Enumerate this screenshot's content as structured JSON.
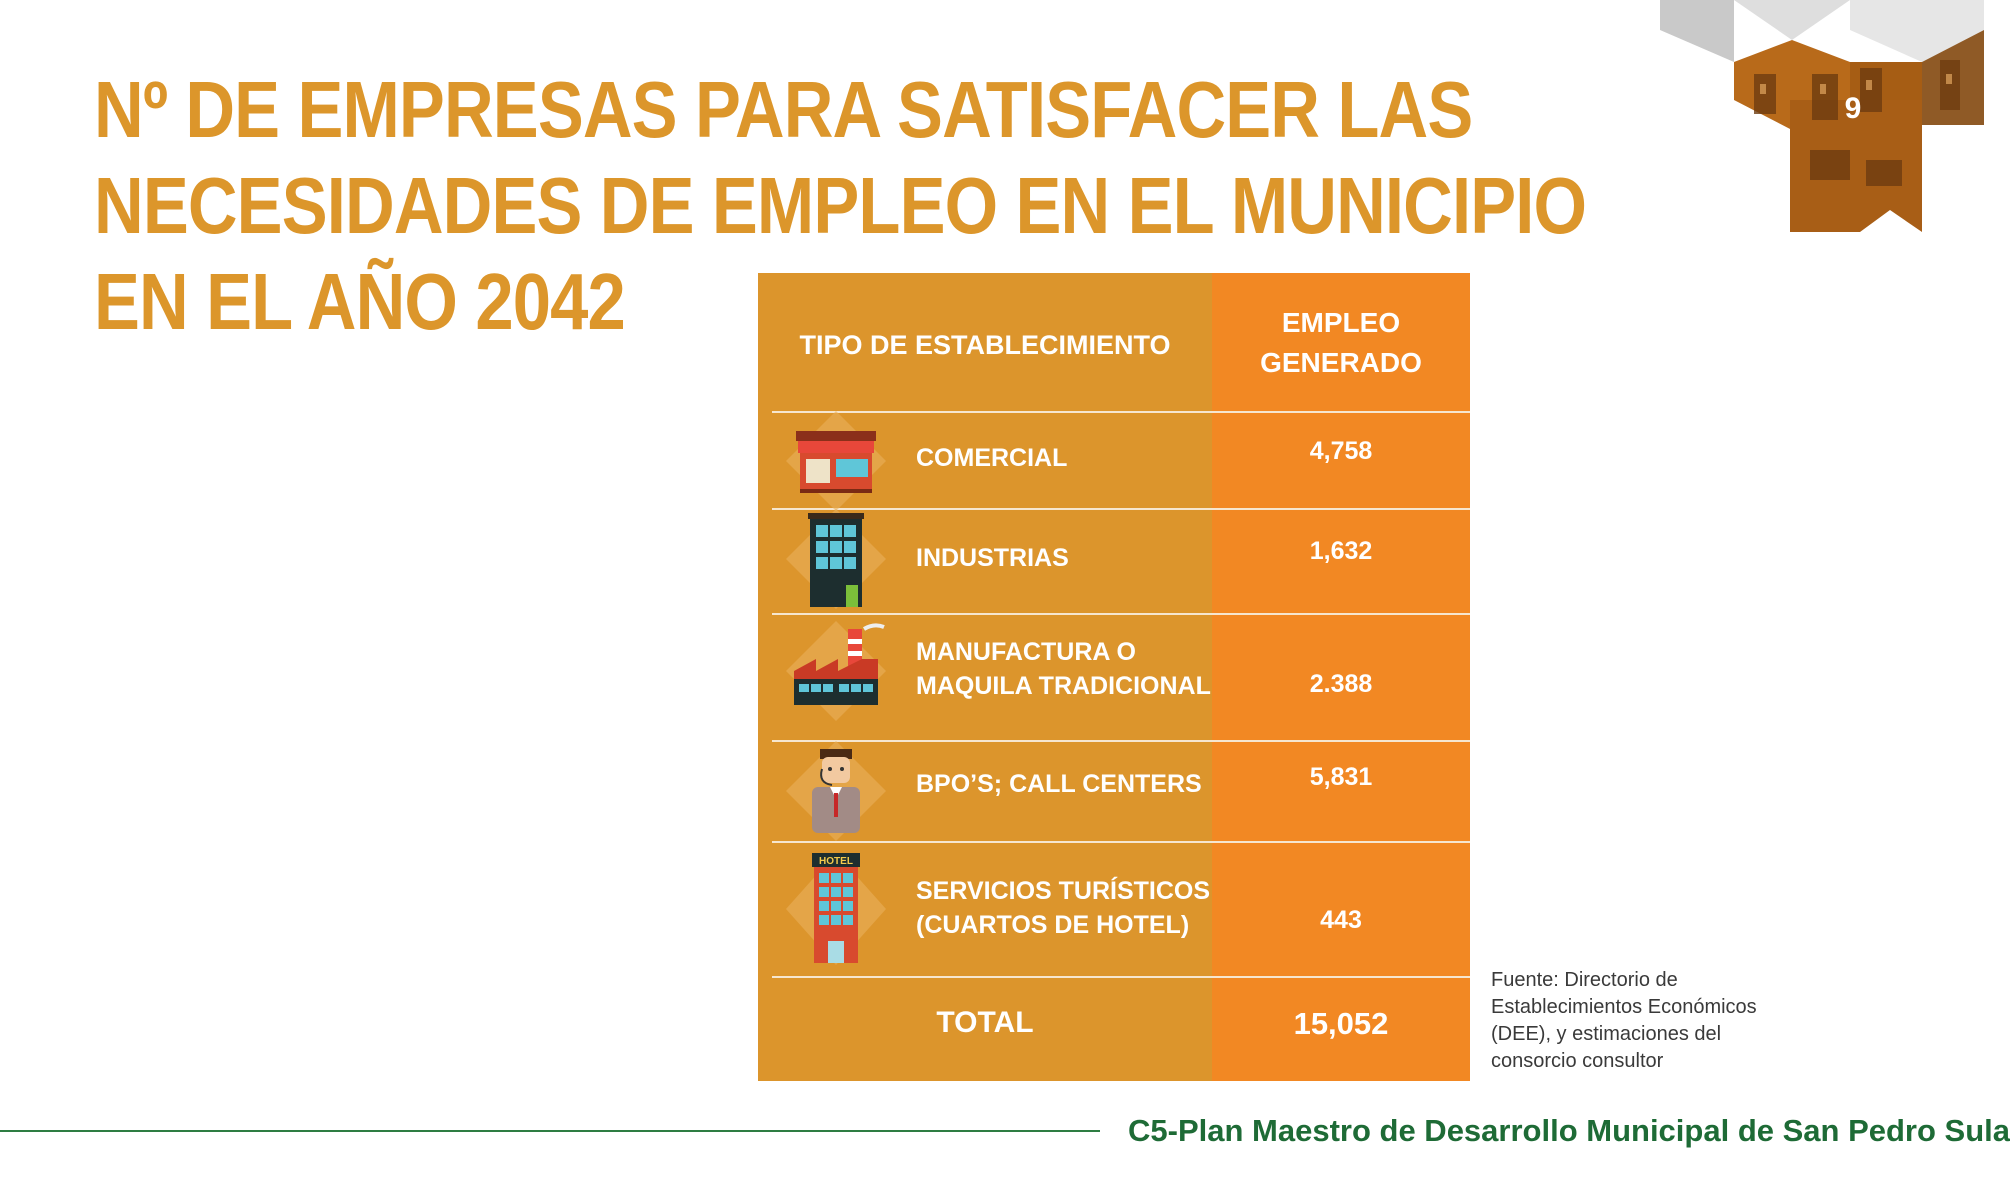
{
  "title": {
    "line1": "Nº DE EMPRESAS PARA SATISFACER LAS",
    "line2": "NECESIDADES DE EMPLEO EN EL MUNICIPIO",
    "line3": "EN EL AÑO 2042"
  },
  "page_number": "9",
  "table": {
    "header_left": "TIPO DE ESTABLECIMIENTO",
    "header_right": "EMPLEO\nGENERADO",
    "rows": [
      {
        "label": "COMERCIAL",
        "value": "4,758",
        "icon": "shop-icon"
      },
      {
        "label": "INDUSTRIAS",
        "value": "1,632",
        "icon": "office-building-icon"
      },
      {
        "label": "MANUFACTURA O\nMAQUILA TRADICIONAL",
        "value": "2.388",
        "icon": "factory-icon"
      },
      {
        "label": "BPO’S; CALL CENTERS",
        "value": "5,831",
        "icon": "call-center-agent-icon"
      },
      {
        "label": "SERVICIOS TURÍSTICOS\n(CUARTOS DE HOTEL)",
        "value": "443",
        "icon": "hotel-icon",
        "icon_text": "HOTEL"
      }
    ],
    "total_label": "TOTAL",
    "total_value": "15,052"
  },
  "source": "Fuente: Directorio de\nEstablecimientos Económicos\n(DEE), y estimaciones del\nconsorcio consultor",
  "footer": "C5-Plan Maestro de Desarrollo Municipal de San Pedro Sula",
  "colors": {
    "title": "#dc962b",
    "table_left": "#dc952c",
    "table_right": "#f28823",
    "footer_green": "#1e6b36"
  }
}
